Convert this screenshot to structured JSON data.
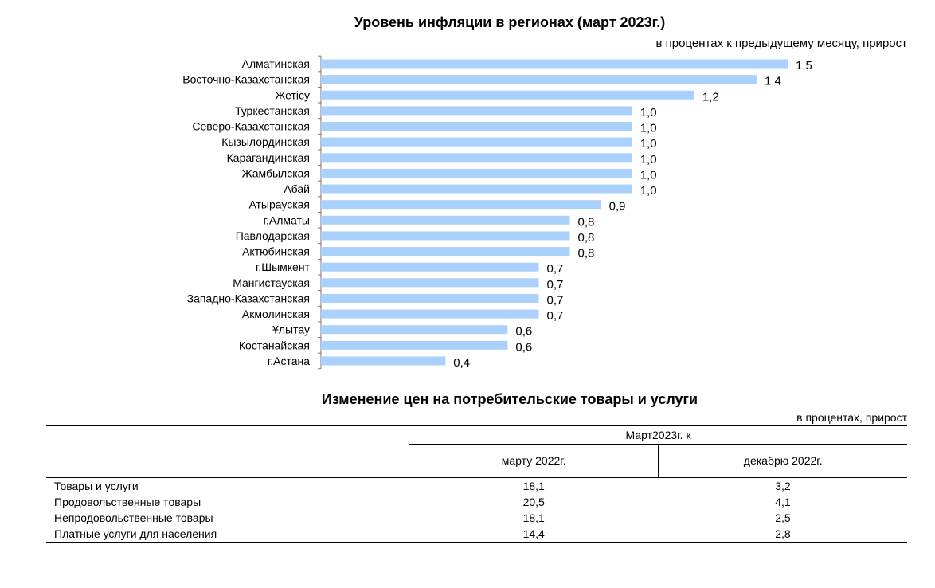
{
  "chart_title": "Уровень инфляции в регионах (март 2023г.)",
  "chart_unit": "в процентах к предыдущему месяцу, прирост",
  "chart_data": {
    "type": "bar",
    "orientation": "horizontal",
    "title": "Уровень инфляции в регионах (март 2023г.)",
    "ylabel": "в процентах к предыдущему месяцу, прирост",
    "xlim": [
      0,
      1.5
    ],
    "bar_color": "#a9d1fb",
    "categories": [
      "Алматинская",
      "Восточно-Казахстанская",
      "Жетісу",
      "Туркестанская",
      "Северо-Казахстанская",
      "Кызылординская",
      "Карагандинская",
      "Жамбылская",
      "Абай",
      "Атырауская",
      "г.Алматы",
      "Павлодарская",
      "Актюбинская",
      "г.Шымкент",
      "Мангистауская",
      "Западно-Казахстанская",
      "Акмолинская",
      "Ұлытау",
      "Костанайская",
      "г.Астана"
    ],
    "values": [
      1.5,
      1.4,
      1.2,
      1.0,
      1.0,
      1.0,
      1.0,
      1.0,
      1.0,
      0.9,
      0.8,
      0.8,
      0.8,
      0.7,
      0.7,
      0.7,
      0.7,
      0.6,
      0.6,
      0.4
    ],
    "value_labels": [
      "1,5",
      "1,4",
      "1,2",
      "1,0",
      "1,0",
      "1,0",
      "1,0",
      "1,0",
      "1,0",
      "0,9",
      "0,8",
      "0,8",
      "0,8",
      "0,7",
      "0,7",
      "0,7",
      "0,7",
      "0,6",
      "0,6",
      "0,4"
    ]
  },
  "table": {
    "title": "Изменение цен на потребительские товары и услуги",
    "unit": "в процентах, прирост",
    "header_span": "Март2023г. к",
    "col1": "марту 2022г.",
    "col2": "декабрю 2022г.",
    "rows": [
      {
        "label": "Товары и услуги",
        "v1": "18,1",
        "v2": "3,2"
      },
      {
        "label": "Продовольственные товары",
        "v1": "20,5",
        "v2": "4,1"
      },
      {
        "label": "Непродовольственные товары",
        "v1": "18,1",
        "v2": "2,5"
      },
      {
        "label": "Платные услуги для населения",
        "v1": "14,4",
        "v2": "2,8"
      }
    ]
  }
}
